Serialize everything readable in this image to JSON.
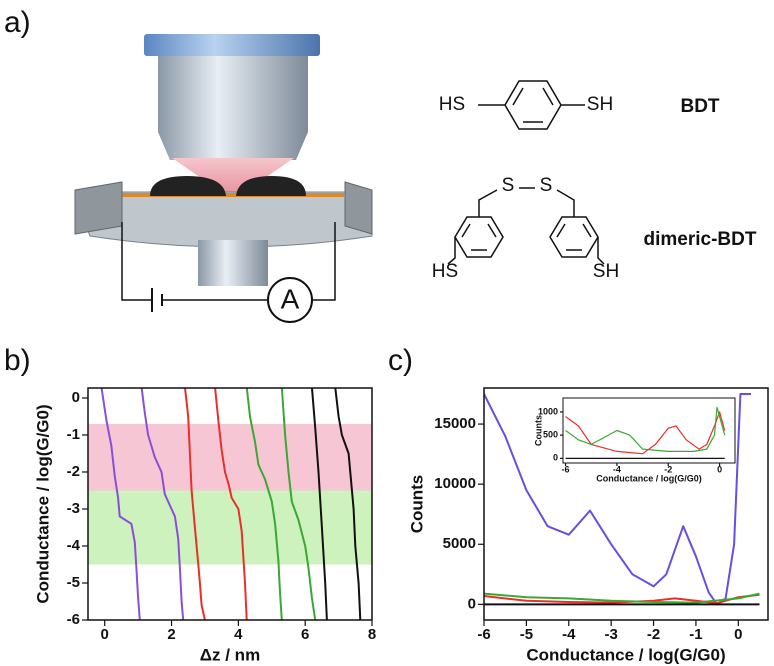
{
  "panel_labels": [
    "a)",
    "b)",
    "c)"
  ],
  "structures": {
    "bdt": {
      "left": "HS",
      "right": "SH",
      "name": "BDT"
    },
    "dimeric": {
      "s1": "S",
      "s2": "S",
      "left": "HS",
      "right": "SH",
      "name": "dimeric-BDT"
    }
  },
  "circuit": {
    "meter": "A"
  },
  "chart_data": [
    {
      "type": "line",
      "x_label": "Δz / nm",
      "y_label": "Conductance / log(G/G0)",
      "xlim": [
        -0.5,
        8
      ],
      "ylim": [
        -6,
        0.27
      ],
      "xticks": [
        0,
        2,
        4,
        6,
        8
      ],
      "yticks": [
        0,
        -1,
        -2,
        -3,
        -4,
        -5,
        -6
      ],
      "bands": [
        {
          "from": -0.7,
          "to": -2.5,
          "color": "#f7c6d4"
        },
        {
          "from": -2.5,
          "to": -4.5,
          "color": "#cdf2bd"
        }
      ],
      "series": [
        {
          "color": "#8a4fd8",
          "x": [
            -0.1,
            0.05,
            0.2,
            0.3,
            0.4,
            0.45,
            0.8,
            0.9,
            0.95,
            1.0,
            1.05
          ],
          "values": [
            0.3,
            -0.6,
            -1.3,
            -2.1,
            -2.7,
            -3.2,
            -3.4,
            -3.9,
            -4.6,
            -5.4,
            -6
          ]
        },
        {
          "color": "#8a4fd8",
          "x": [
            1.1,
            1.2,
            1.3,
            1.5,
            1.7,
            1.8,
            2.1,
            2.2,
            2.25,
            2.3,
            2.35
          ],
          "values": [
            0.3,
            -0.4,
            -1.0,
            -1.6,
            -2.0,
            -2.6,
            -3.2,
            -3.8,
            -4.6,
            -5.5,
            -6
          ]
        },
        {
          "color": "#e8302a",
          "x": [
            2.4,
            2.5,
            2.55,
            2.6,
            2.7,
            2.8,
            2.85,
            2.9,
            3.0
          ],
          "values": [
            0.3,
            -0.5,
            -1.5,
            -2.5,
            -3.5,
            -4.5,
            -5.0,
            -5.6,
            -6
          ]
        },
        {
          "color": "#e8302a",
          "x": [
            3.3,
            3.4,
            3.5,
            3.6,
            3.7,
            3.8,
            4.0,
            4.1,
            4.2,
            4.25
          ],
          "values": [
            0.3,
            -0.6,
            -1.4,
            -2.0,
            -2.3,
            -2.7,
            -3.0,
            -3.6,
            -5.0,
            -6
          ]
        },
        {
          "color": "#3aa832",
          "x": [
            4.25,
            4.35,
            4.5,
            4.6,
            4.8,
            5.0,
            5.1,
            5.2,
            5.25,
            5.3
          ],
          "values": [
            0.3,
            -0.5,
            -1.2,
            -1.8,
            -2.2,
            -2.8,
            -3.4,
            -4.4,
            -5.3,
            -6
          ]
        },
        {
          "color": "#3aa832",
          "x": [
            5.3,
            5.4,
            5.5,
            5.6,
            5.8,
            6.0,
            6.1,
            6.2,
            6.3
          ],
          "values": [
            0.3,
            -1.0,
            -2.0,
            -2.8,
            -3.3,
            -4.0,
            -4.6,
            -5.4,
            -6
          ]
        },
        {
          "color": "#111111",
          "x": [
            6.2,
            6.3,
            6.4,
            6.5,
            6.6,
            6.65
          ],
          "values": [
            0.3,
            -0.8,
            -2.0,
            -3.5,
            -5.0,
            -6
          ]
        },
        {
          "color": "#111111",
          "x": [
            6.9,
            7.0,
            7.1,
            7.3,
            7.45,
            7.5,
            7.6,
            7.65
          ],
          "values": [
            0.3,
            -0.5,
            -1.0,
            -1.5,
            -3.0,
            -4.0,
            -5.0,
            -6
          ]
        }
      ]
    },
    {
      "type": "line",
      "x_label": "Conductance / log(G/G0)",
      "y_label": "Counts",
      "xlim": [
        -6,
        0.7
      ],
      "ylim": [
        -1300,
        18000
      ],
      "xticks": [
        -6,
        -5,
        -4,
        -3,
        -2,
        -1,
        0
      ],
      "yticks": [
        0,
        5000,
        10000,
        15000
      ],
      "series": [
        {
          "color": "#6a4de0",
          "x": [
            -6,
            -5.5,
            -5,
            -4.5,
            -4,
            -3.5,
            -3,
            -2.5,
            -2,
            -1.7,
            -1.3,
            -1,
            -0.7,
            -0.5,
            -0.3,
            -0.1,
            0.05,
            0.3
          ],
          "values": [
            17500,
            14000,
            9500,
            6500,
            5800,
            7800,
            5000,
            2500,
            1500,
            2500,
            6500,
            4000,
            1000,
            0,
            500,
            5000,
            17500,
            17500
          ]
        },
        {
          "color": "#e8302a",
          "x": [
            -6,
            -5,
            -4,
            -3,
            -2,
            -1.5,
            -1,
            -0.5,
            0,
            0.5
          ],
          "values": [
            700,
            300,
            200,
            150,
            300,
            500,
            300,
            100,
            600,
            800
          ]
        },
        {
          "color": "#3aa832",
          "x": [
            -6,
            -5,
            -4,
            -3,
            -2,
            -1,
            0,
            0.5
          ],
          "values": [
            900,
            600,
            500,
            300,
            200,
            150,
            500,
            900
          ]
        },
        {
          "color": "#111111",
          "x": [
            -6,
            0.5
          ],
          "values": [
            0,
            0
          ]
        }
      ]
    },
    {
      "type": "line",
      "x_label": "Conductance / log(G/G0)",
      "y_label": "Counts",
      "xlim": [
        -6.1,
        0.6
      ],
      "ylim": [
        -100,
        1300
      ],
      "xticks": [
        -6,
        -4,
        -2,
        0
      ],
      "yticks": [
        0,
        500,
        1000
      ],
      "series": [
        {
          "color": "#e8302a",
          "x": [
            -6,
            -5.5,
            -5,
            -4,
            -3,
            -2.5,
            -2,
            -1.7,
            -1.3,
            -0.8,
            -0.5,
            -0.2,
            0,
            0.2
          ],
          "values": [
            900,
            700,
            300,
            150,
            100,
            300,
            650,
            700,
            400,
            200,
            300,
            700,
            1000,
            600
          ]
        },
        {
          "color": "#3aa832",
          "x": [
            -6,
            -5.5,
            -5,
            -4.5,
            -4,
            -3.5,
            -3,
            -2,
            -1,
            -0.5,
            -0.2,
            -0.1,
            0.2
          ],
          "values": [
            600,
            400,
            300,
            450,
            600,
            500,
            200,
            150,
            150,
            200,
            500,
            1100,
            500
          ]
        },
        {
          "color": "#111111",
          "x": [
            -6,
            0.2
          ],
          "values": [
            0,
            0
          ]
        }
      ]
    }
  ]
}
